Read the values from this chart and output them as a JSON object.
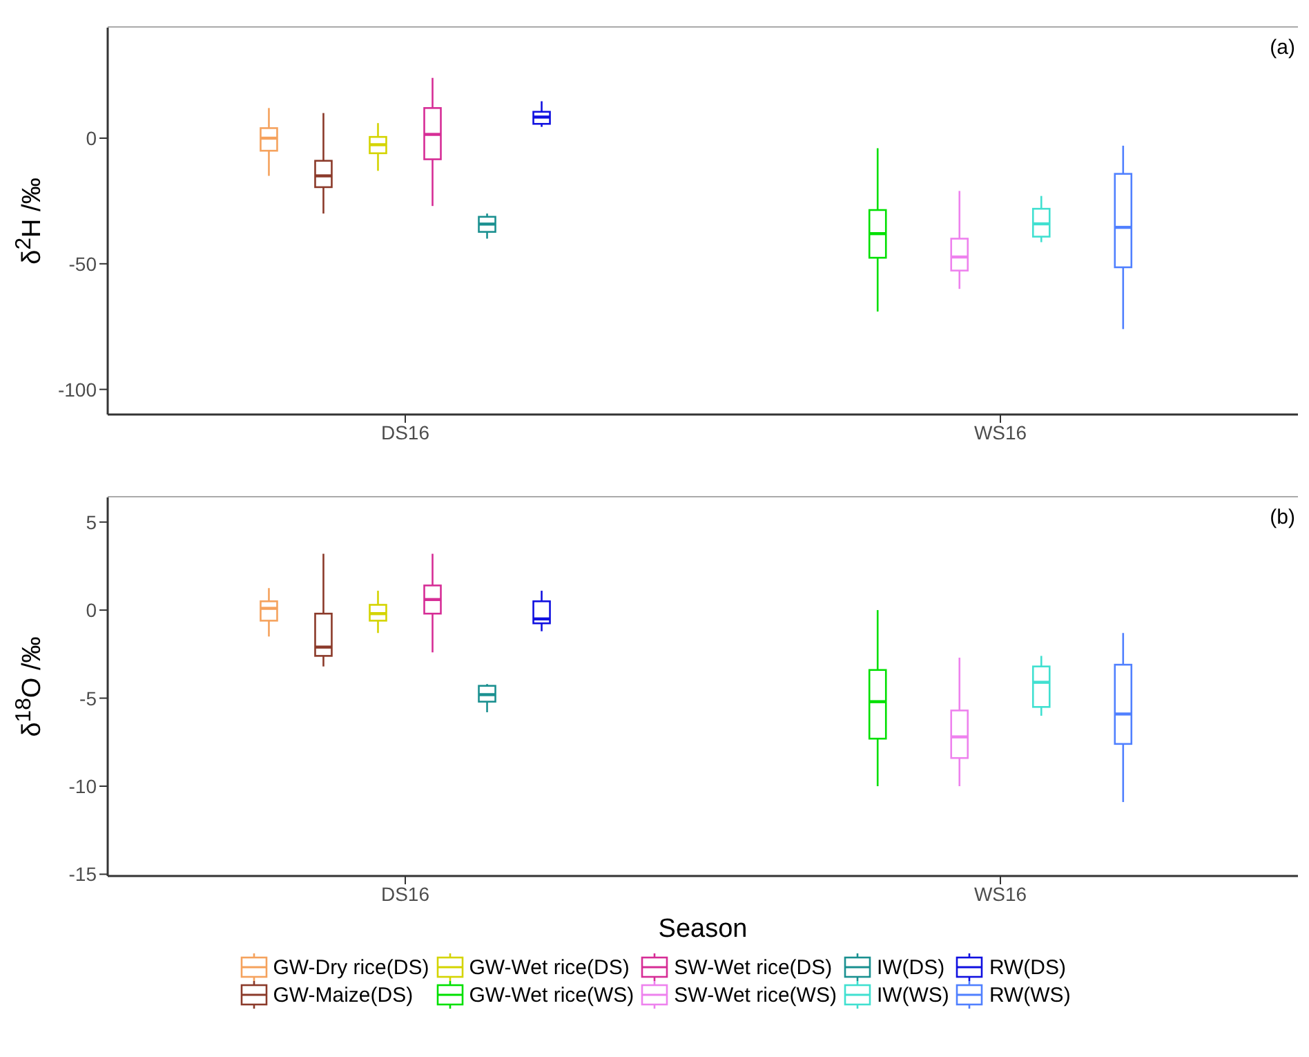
{
  "chart_data": [
    {
      "type": "box",
      "categories": [
        "DS16",
        "WS16"
      ],
      "ylabel": "δ$^{2}$H /‰",
      "ylim": [
        -110,
        44
      ],
      "yticks": [
        -100,
        -50,
        0
      ],
      "grid": false,
      "legend": "bottom",
      "annotations": [
        "(a)"
      ],
      "series": [
        {
          "name": "GW-Dry rice(DS)",
          "color": "#f5a25d",
          "boxes": [
            {
              "low": -15,
              "q1": -5,
              "median": 0,
              "q3": 4,
              "high": 12
            },
            null
          ]
        },
        {
          "name": "GW-Maize(DS)",
          "color": "#8b3a2a",
          "boxes": [
            {
              "low": -30,
              "q1": -19.5,
              "median": -15,
              "q3": -9,
              "high": 10
            },
            null
          ]
        },
        {
          "name": "GW-Wet rice(DS)",
          "color": "#d4d400",
          "boxes": [
            {
              "low": -13,
              "q1": -6,
              "median": -2.6,
              "q3": 0.5,
              "high": 6
            },
            null
          ]
        },
        {
          "name": "GW-Wet rice(WS)",
          "color": "#00e000",
          "boxes": [
            null,
            {
              "low": -69,
              "q1": -47.6,
              "median": -38,
              "q3": -28.6,
              "high": -4
            }
          ]
        },
        {
          "name": "SW-Wet rice(DS)",
          "color": "#d62d96",
          "boxes": [
            {
              "low": -27,
              "q1": -8.4,
              "median": 1.5,
              "q3": 12,
              "high": 24
            },
            null
          ]
        },
        {
          "name": "SW-Wet rice(WS)",
          "color": "#ee82ee",
          "boxes": [
            null,
            {
              "low": -60,
              "q1": -52.7,
              "median": -47.3,
              "q3": -40,
              "high": -21
            }
          ]
        },
        {
          "name": "IW(DS)",
          "color": "#1a9090",
          "boxes": [
            {
              "low": -40,
              "q1": -37.3,
              "median": -34.2,
              "q3": -31.3,
              "high": -30
            },
            null
          ]
        },
        {
          "name": "IW(WS)",
          "color": "#40e0d0",
          "boxes": [
            null,
            {
              "low": -41.4,
              "q1": -39.2,
              "median": -34.1,
              "q3": -28.1,
              "high": -23
            }
          ]
        },
        {
          "name": "RW(DS)",
          "color": "#1010e0",
          "boxes": [
            {
              "low": 4.5,
              "q1": 5.7,
              "median": 8.4,
              "q3": 10.5,
              "high": 14.7
            },
            null
          ]
        },
        {
          "name": "RW(WS)",
          "color": "#5080ff",
          "boxes": [
            null,
            {
              "low": -76,
              "q1": -51.4,
              "median": -35.5,
              "q3": -14.2,
              "high": -3
            }
          ]
        }
      ]
    },
    {
      "type": "box",
      "categories": [
        "DS16",
        "WS16"
      ],
      "xlabel": "Season",
      "ylabel": "δ$^{18}$O /‰",
      "ylim": [
        -15.1,
        6.4
      ],
      "yticks": [
        -15,
        -10,
        -5,
        0,
        5
      ],
      "grid": false,
      "legend": "bottom",
      "annotations": [
        "(b)"
      ],
      "series": [
        {
          "name": "GW-Dry rice(DS)",
          "color": "#f5a25d",
          "boxes": [
            {
              "low": -1.5,
              "q1": -0.6,
              "median": 0.1,
              "q3": 0.5,
              "high": 1.25
            },
            null
          ]
        },
        {
          "name": "GW-Maize(DS)",
          "color": "#8b3a2a",
          "boxes": [
            {
              "low": -3.2,
              "q1": -2.6,
              "median": -2.1,
              "q3": -0.2,
              "high": 3.2
            },
            null
          ]
        },
        {
          "name": "GW-Wet rice(DS)",
          "color": "#d4d400",
          "boxes": [
            {
              "low": -1.3,
              "q1": -0.6,
              "median": -0.2,
              "q3": 0.3,
              "high": 1.1
            },
            null
          ]
        },
        {
          "name": "GW-Wet rice(WS)",
          "color": "#00e000",
          "boxes": [
            null,
            {
              "low": -10,
              "q1": -7.3,
              "median": -5.2,
              "q3": -3.4,
              "high": 0
            }
          ]
        },
        {
          "name": "SW-Wet rice(DS)",
          "color": "#d62d96",
          "boxes": [
            {
              "low": -2.4,
              "q1": -0.2,
              "median": 0.6,
              "q3": 1.4,
              "high": 3.2
            },
            null
          ]
        },
        {
          "name": "SW-Wet rice(WS)",
          "color": "#ee82ee",
          "boxes": [
            null,
            {
              "low": -10,
              "q1": -8.4,
              "median": -7.2,
              "q3": -5.7,
              "high": -2.7
            }
          ]
        },
        {
          "name": "IW(DS)",
          "color": "#1a9090",
          "boxes": [
            {
              "low": -5.8,
              "q1": -5.2,
              "median": -4.8,
              "q3": -4.3,
              "high": -4.2
            },
            null
          ]
        },
        {
          "name": "IW(WS)",
          "color": "#40e0d0",
          "boxes": [
            null,
            {
              "low": -6,
              "q1": -5.5,
              "median": -4.1,
              "q3": -3.2,
              "high": -2.6
            }
          ]
        },
        {
          "name": "RW(DS)",
          "color": "#1010e0",
          "boxes": [
            {
              "low": -1.2,
              "q1": -0.75,
              "median": -0.5,
              "q3": 0.5,
              "high": 1.1
            },
            null
          ]
        },
        {
          "name": "RW(WS)",
          "color": "#5080ff",
          "boxes": [
            null,
            {
              "low": -10.9,
              "q1": -7.6,
              "median": -5.9,
              "q3": -3.1,
              "high": -1.3
            }
          ]
        }
      ]
    }
  ]
}
